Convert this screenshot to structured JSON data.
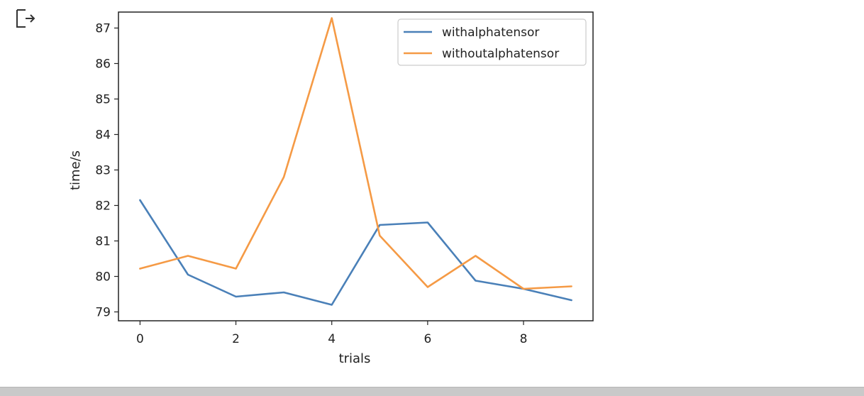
{
  "icons": {
    "output": "output-redirect-icon"
  },
  "chart_data": {
    "type": "line",
    "title": "",
    "xlabel": "trials",
    "ylabel": "time/s",
    "x": [
      0,
      1,
      2,
      3,
      4,
      5,
      6,
      7,
      8,
      9
    ],
    "xlim": [
      -0.45,
      9.45
    ],
    "ylim": [
      78.75,
      87.45
    ],
    "xticks": [
      0,
      2,
      4,
      6,
      8
    ],
    "yticks": [
      79,
      80,
      81,
      82,
      83,
      84,
      85,
      86,
      87
    ],
    "grid": false,
    "legend_position": "top-right",
    "series": [
      {
        "name": "withalphatensor",
        "color": "#4a80b8",
        "values": [
          82.15,
          80.05,
          79.43,
          79.55,
          79.2,
          81.45,
          81.52,
          79.88,
          79.65,
          79.33
        ]
      },
      {
        "name": "withoutalphatensor",
        "color": "#f59a45",
        "values": [
          80.22,
          80.58,
          80.22,
          82.8,
          87.28,
          81.15,
          79.7,
          80.58,
          79.65,
          79.72
        ]
      }
    ]
  }
}
